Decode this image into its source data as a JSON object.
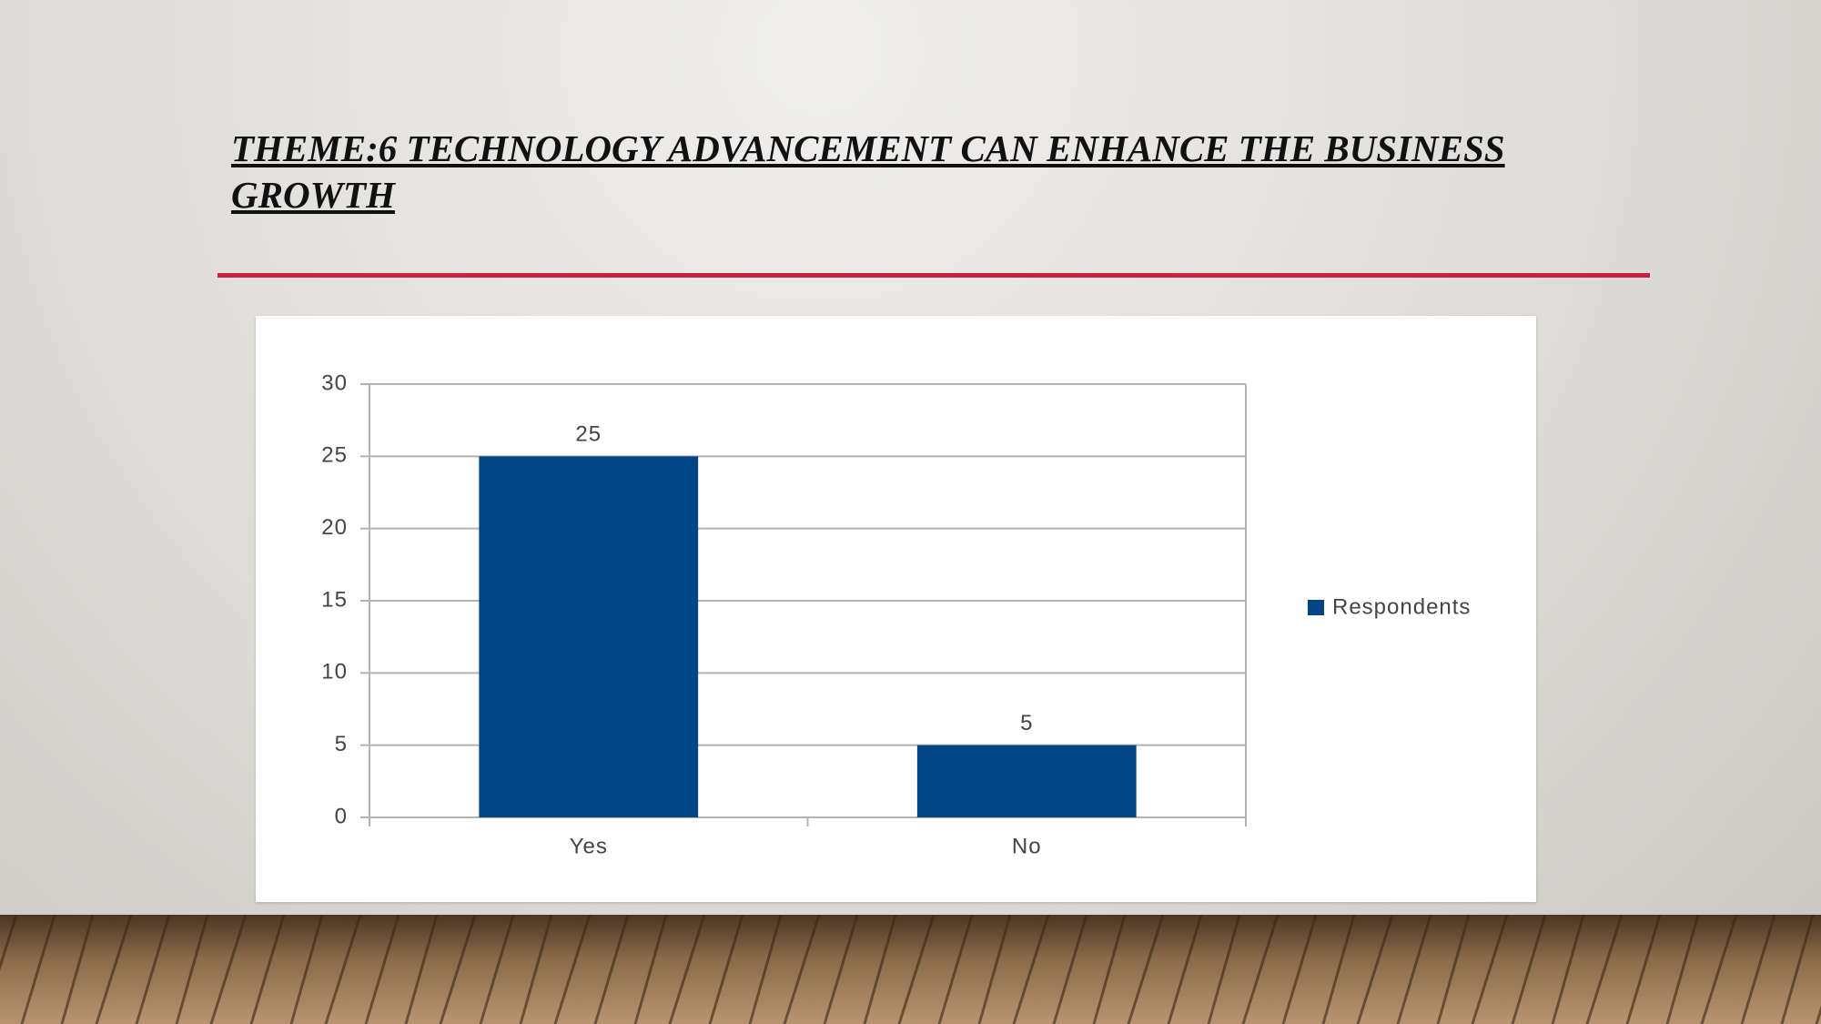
{
  "slide": {
    "title": "THEME:6 TECHNOLOGY ADVANCEMENT CAN ENHANCE THE BUSINESS GROWTH"
  },
  "chart_data": {
    "type": "bar",
    "categories": [
      "Yes",
      "No"
    ],
    "series": [
      {
        "name": "Respondents",
        "color": "#004586",
        "values": [
          25,
          5
        ]
      }
    ],
    "ylim": [
      0,
      30
    ],
    "yticks": [
      0,
      5,
      10,
      15,
      20,
      25,
      30
    ],
    "grid": true,
    "legend": "right",
    "data_labels": true
  }
}
